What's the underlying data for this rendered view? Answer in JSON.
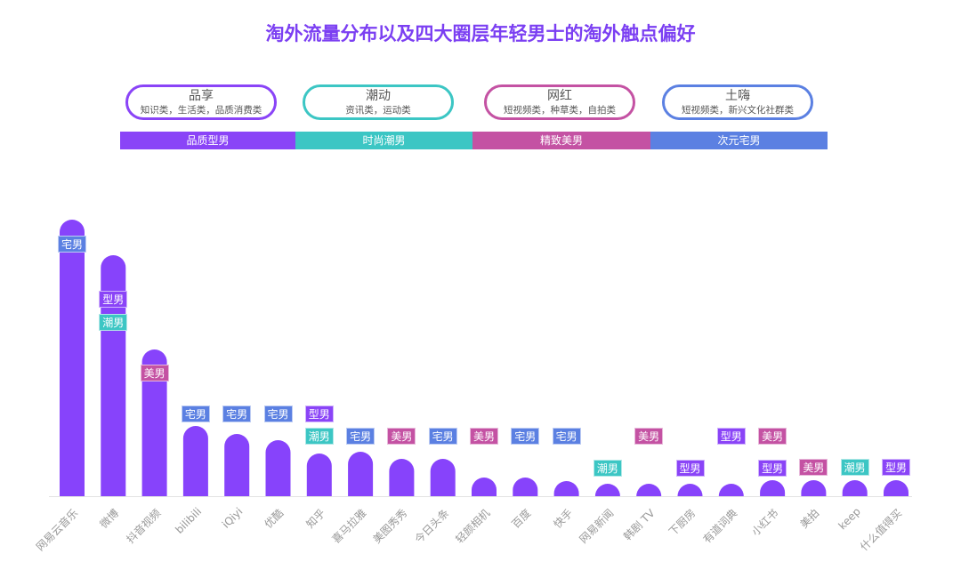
{
  "chart_data": {
    "type": "bar",
    "title": "淘外流量分布以及四大圈层年轻男士的淘外触点偏好",
    "categories": [
      "网易云音乐",
      "微博",
      "抖音视频",
      "bilibili",
      "iQiyi",
      "优酷",
      "知乎",
      "喜马拉雅",
      "美图秀秀",
      "今日头条",
      "轻颜相机",
      "百度",
      "快手",
      "网易新闻",
      "韩剧 TV",
      "下厨房",
      "有道词典",
      "小红书",
      "美拍",
      "keep",
      "什么值得买"
    ],
    "values": [
      311,
      271,
      165,
      79,
      70,
      63,
      48,
      50,
      42,
      42,
      21,
      21,
      17,
      14,
      14,
      14,
      14,
      18,
      18,
      18,
      18
    ],
    "tags": [
      [
        "宅男"
      ],
      [
        "型男",
        "潮男"
      ],
      [
        "美男"
      ],
      [
        "宅男"
      ],
      [
        "宅男"
      ],
      [
        "宅男"
      ],
      [
        "型男",
        "潮男"
      ],
      [
        "宅男"
      ],
      [
        "美男"
      ],
      [
        "宅男"
      ],
      [
        "美男"
      ],
      [
        "宅男"
      ],
      [
        "宅男"
      ],
      [
        "潮男"
      ],
      [
        "美男"
      ],
      [
        "型男"
      ],
      [
        "型男"
      ],
      [
        "美男",
        "型男"
      ],
      [
        "美男"
      ],
      [
        "潮男"
      ],
      [
        "型男"
      ]
    ],
    "bar_color": "#8743fb",
    "axis_labels_shown": false,
    "grid": false
  },
  "tag_colors": {
    "型男": "#8a44f7",
    "潮男": "#3cc6c4",
    "美男": "#c452a3",
    "宅男": "#5b80e2"
  },
  "segments": [
    {
      "pill_title": "品享",
      "pill_sub": "知识类，生活类，品质消费类",
      "label": "品质型男",
      "color": "#8a44f7"
    },
    {
      "pill_title": "潮动",
      "pill_sub": "资讯类，运动类",
      "label": "时尚潮男",
      "color": "#3cc6c4"
    },
    {
      "pill_title": "网红",
      "pill_sub": "短视频类，种草类，自拍类",
      "label": "精致美男",
      "color": "#c452a3"
    },
    {
      "pill_title": "土嗨",
      "pill_sub": "短视频类，新兴文化社群类",
      "label": "次元宅男",
      "color": "#5b80e2"
    }
  ]
}
